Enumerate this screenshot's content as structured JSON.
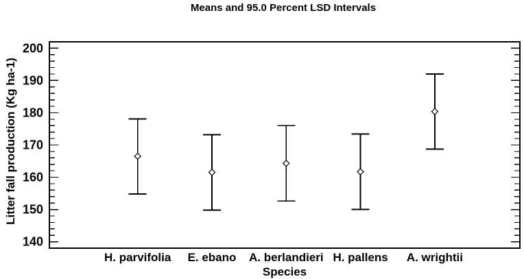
{
  "chart_data": {
    "type": "error-bar",
    "title": "Means and 95.0 Percent LSD Intervals",
    "xlabel": "Species",
    "ylabel": "Litter fall production (Kg ha-1)",
    "ylim": [
      138,
      202
    ],
    "ytick_major": [
      140,
      150,
      160,
      170,
      180,
      190,
      200
    ],
    "ytick_minor_step": 2,
    "grid": false,
    "legend": "none",
    "marker": "open-diamond",
    "categories": [
      "H. parvifolia",
      "E. ebano",
      "A. berlandieri",
      "H. pallens",
      "A. wrightii"
    ],
    "series": [
      {
        "name": "Mean",
        "values": [
          166.5,
          161.5,
          164.3,
          161.7,
          180.4
        ]
      }
    ],
    "intervals": {
      "name": "95.0% LSD interval",
      "lower": [
        154.8,
        149.8,
        152.6,
        150.0,
        168.7
      ],
      "upper": [
        178.1,
        173.2,
        176.0,
        173.4,
        192.0
      ]
    },
    "colors": {
      "line": "#000000",
      "text": "#000000",
      "background": "#ffffff",
      "marker_fill": "#ffffff"
    }
  }
}
